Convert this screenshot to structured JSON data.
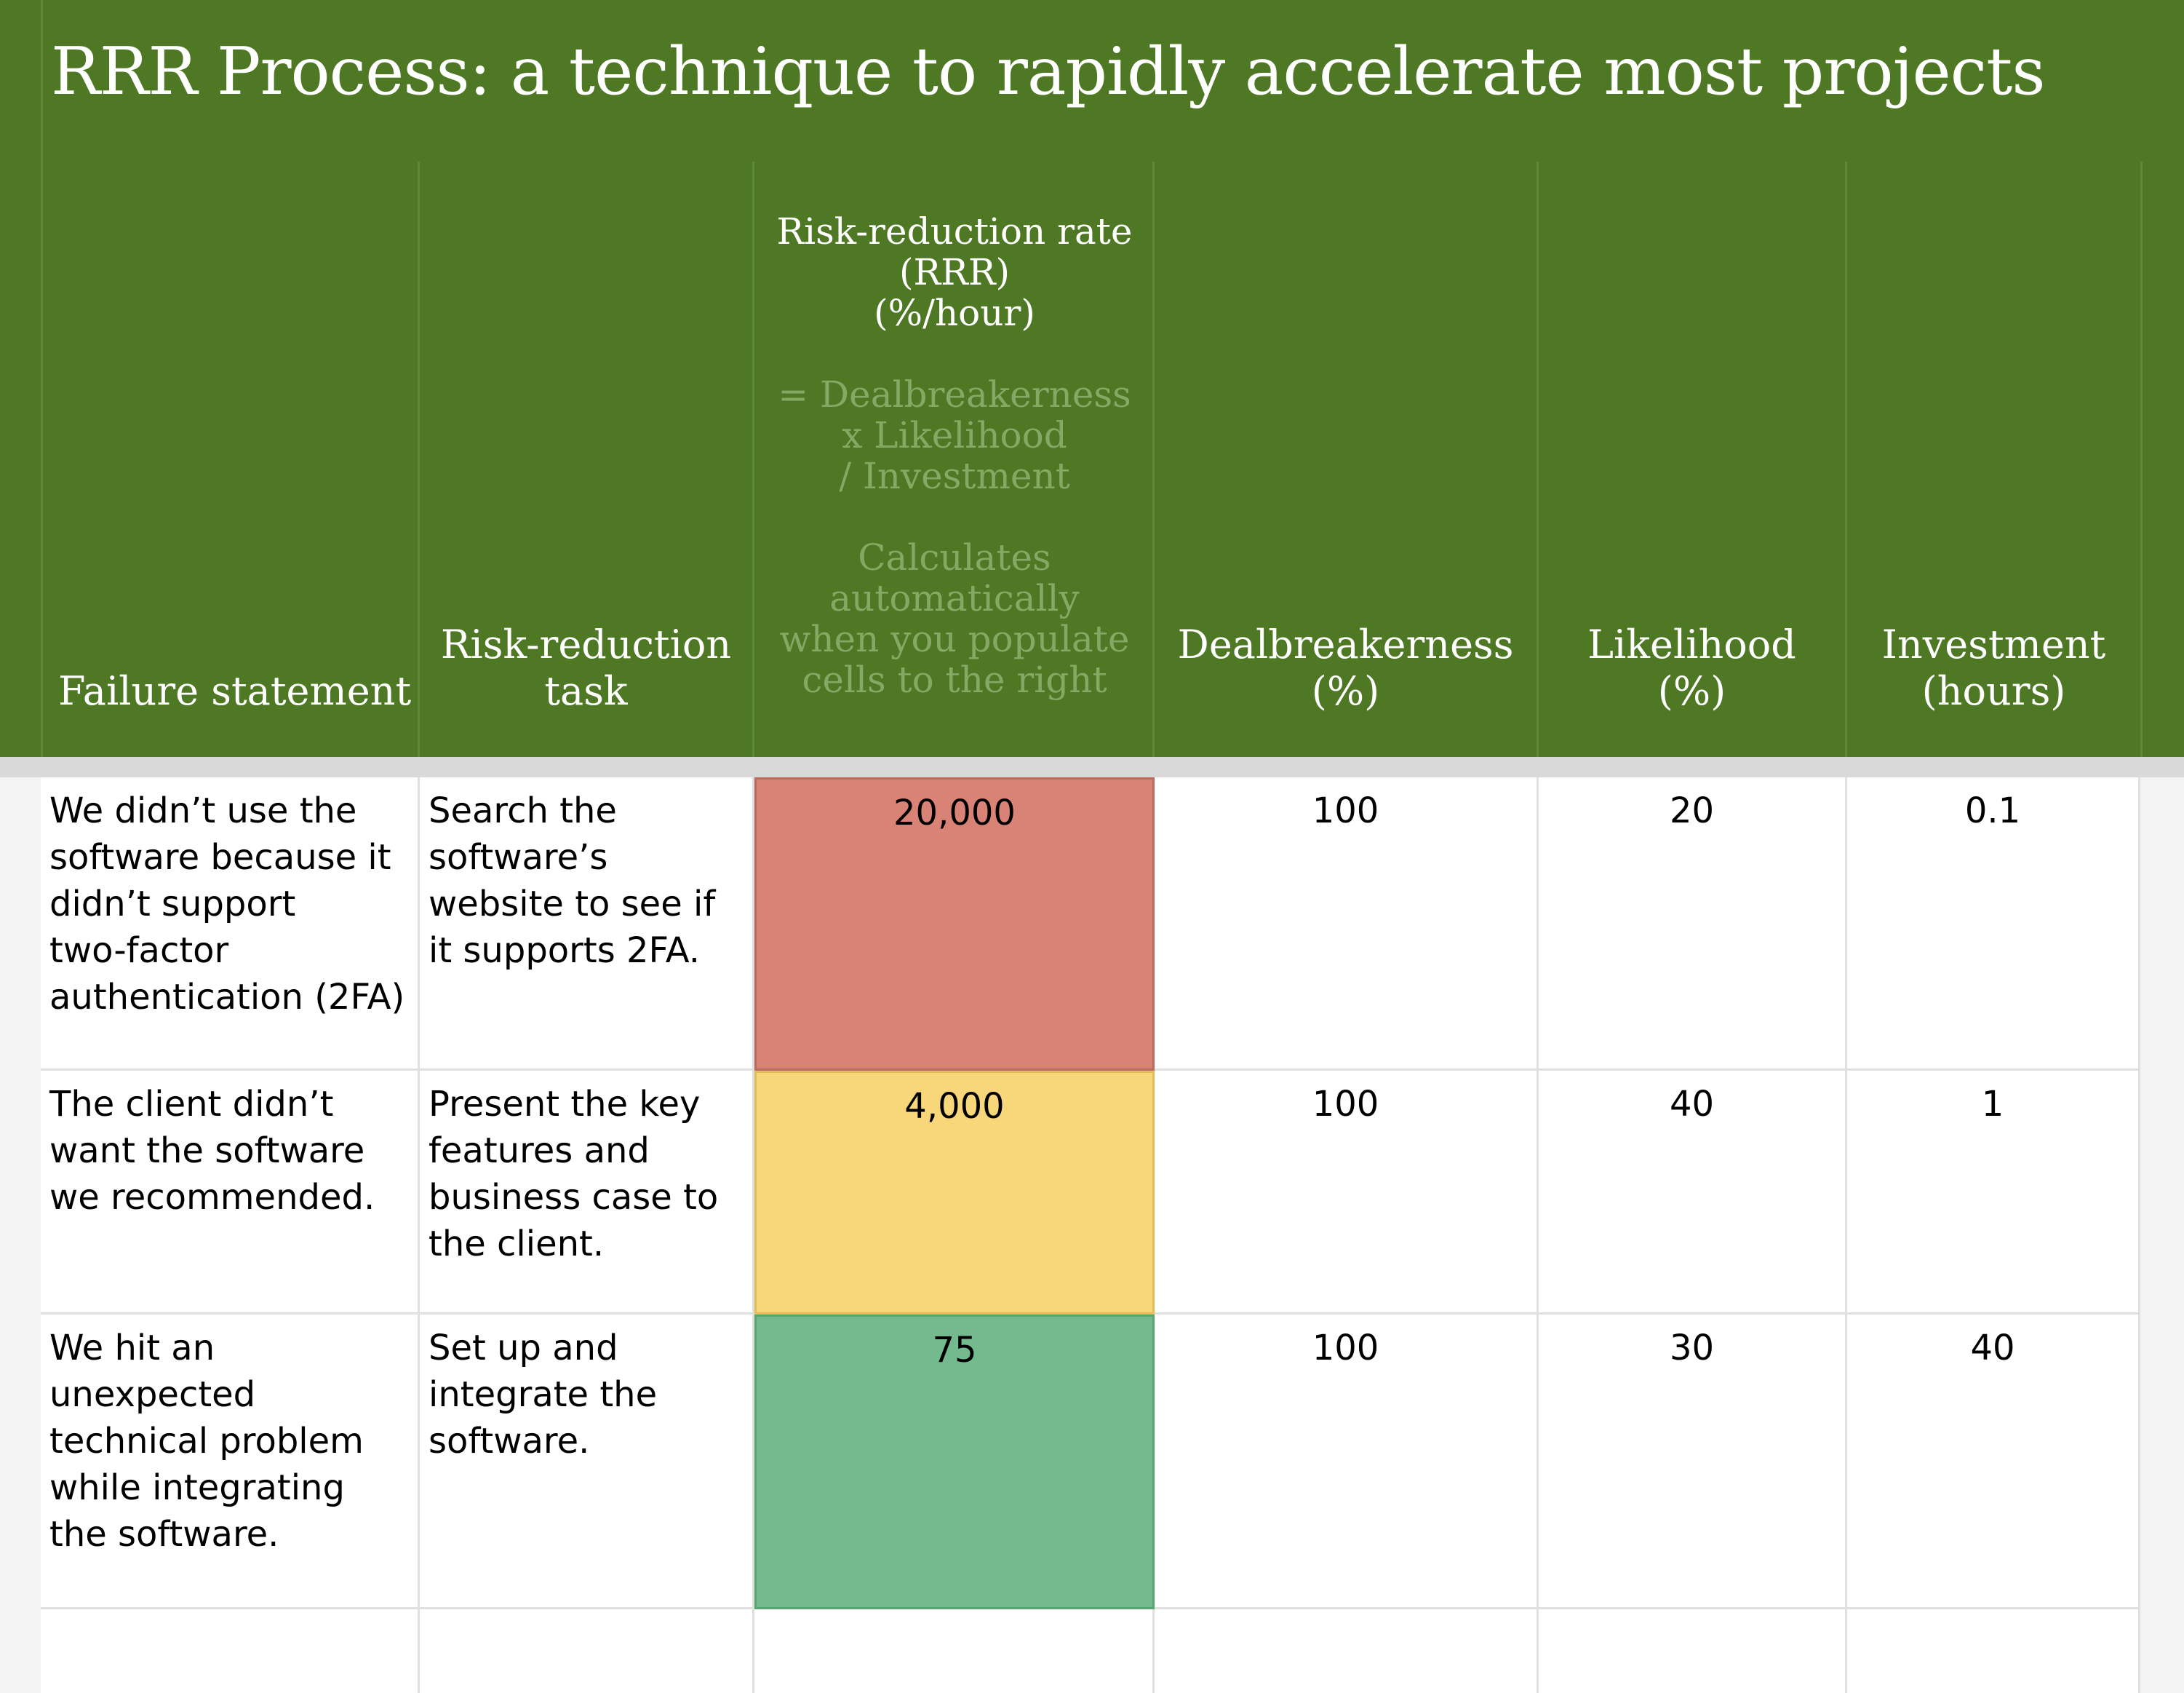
{
  "title": "RRR Process: a technique to rapidly accelerate most projects",
  "colors": {
    "header_bg": "#4f7825",
    "header_muted_text": "#86a865",
    "rrr_high": "#d98276",
    "rrr_medium": "#f8d77a",
    "rrr_low": "#73bb8e"
  },
  "headers": {
    "failure_statement": "Failure statement",
    "task_line1": "Risk-reduction",
    "task_line2": "task",
    "rrr_line1": "Risk-reduction rate",
    "rrr_line2": "(RRR)",
    "rrr_line3": "(%/hour)",
    "formula_line1": "= Dealbreakerness",
    "formula_line2": "x Likelihood",
    "formula_line3": "/ Investment",
    "note_line1": "Calculates",
    "note_line2": "automatically",
    "note_line3": "when you populate",
    "note_line4": "cells to the right",
    "deal_line1": "Dealbreakerness",
    "deal_line2": "(%)",
    "like_line1": "Likelihood",
    "like_line2": "(%)",
    "inv_line1": "Investment",
    "inv_line2": "(hours)"
  },
  "rows": [
    {
      "failure": "We didn’t use the\nsoftware because it\ndidn’t support\ntwo-factor\nauthentication (2FA)",
      "task": "Search the\nsoftware’s\nwebsite to see if\nit supports 2FA.",
      "rrr": "20,000",
      "dealbreakerness": "100",
      "likelihood": "20",
      "investment": "0.1"
    },
    {
      "failure": "The client didn’t\nwant the software\nwe recommended.",
      "task": "Present the key\nfeatures and\nbusiness case to\nthe client.",
      "rrr": "4,000",
      "dealbreakerness": "100",
      "likelihood": "40",
      "investment": "1"
    },
    {
      "failure": "We hit an\nunexpected\ntechnical problem\nwhile integrating\nthe software.",
      "task": "Set up and\nintegrate the\nsoftware.",
      "rrr": "75",
      "dealbreakerness": "100",
      "likelihood": "30",
      "investment": "40"
    },
    {
      "failure": "",
      "task": "",
      "rrr": "",
      "dealbreakerness": "",
      "likelihood": "",
      "investment": ""
    }
  ]
}
